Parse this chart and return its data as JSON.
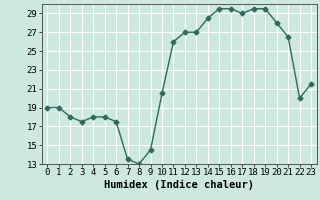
{
  "x": [
    0,
    1,
    2,
    3,
    4,
    5,
    6,
    7,
    8,
    9,
    10,
    11,
    12,
    13,
    14,
    15,
    16,
    17,
    18,
    19,
    20,
    21,
    22,
    23
  ],
  "y": [
    19,
    19,
    18,
    17.5,
    18,
    18,
    17.5,
    13.5,
    13,
    14.5,
    20.5,
    26,
    27,
    27,
    28.5,
    29.5,
    29.5,
    29,
    29.5,
    29.5,
    28,
    26.5,
    20,
    21.5
  ],
  "line_color": "#2e6b5e",
  "marker": "D",
  "marker_size": 2.5,
  "bg_color": "#cde8df",
  "grid_color": "#ffffff",
  "xlabel": "Humidex (Indice chaleur)",
  "xlabel_fontsize": 7.5,
  "tick_fontsize": 6.5,
  "ylim": [
    13,
    30
  ],
  "yticks": [
    13,
    15,
    17,
    19,
    21,
    23,
    25,
    27,
    29
  ],
  "xticks": [
    0,
    1,
    2,
    3,
    4,
    5,
    6,
    7,
    8,
    9,
    10,
    11,
    12,
    13,
    14,
    15,
    16,
    17,
    18,
    19,
    20,
    21,
    22,
    23
  ],
  "line_width": 1.0
}
